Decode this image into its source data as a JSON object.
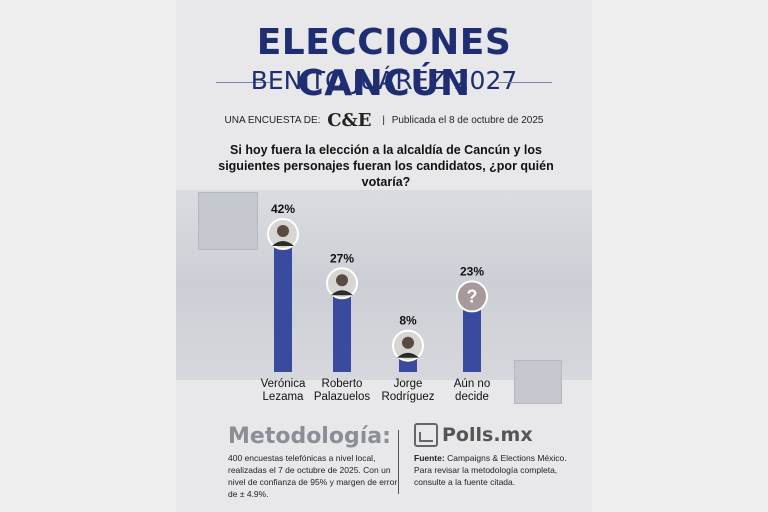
{
  "header": {
    "title": "ELECCIONES CANCÚN",
    "subtitle": "BENITO JUÁREZ 2027",
    "survey_by_label": "UNA ENCUESTA DE:",
    "brand": "C&E",
    "published": "Publicada el 8 de octubre de 2025"
  },
  "question": "Si hoy fuera la elección a la alcaldía de Cancún y los siguientes personajes fueran los candidatos, ¿por quién votaría?",
  "colors": {
    "bar": "#3a4b9f",
    "title": "#1f2e73"
  },
  "chart_data": {
    "type": "bar",
    "categories": [
      [
        "Verónica",
        "Lezama"
      ],
      [
        "Roberto",
        "Palazuelos"
      ],
      [
        "Jorge",
        "Rodríguez"
      ],
      [
        "Aún no",
        "decide"
      ]
    ],
    "values": [
      42,
      27,
      8,
      23
    ],
    "value_labels": [
      "42%",
      "27%",
      "8%",
      "23%"
    ],
    "undecided_symbol": "?",
    "ylim": [
      0,
      42
    ],
    "grid": false
  },
  "methodology": {
    "title": "Metodología:",
    "text": "400 encuestas telefónicas a nivel local, realizadas el 7 de octubre de 2025. Con un nivel de confianza de 95% y margen de error de ± 4.9%."
  },
  "source": {
    "logo_text": "Polls.mx",
    "label": "Fuente:",
    "text": "Campaigns & Elections México. Para revisar la metodología completa, consulte a la fuente citada."
  }
}
